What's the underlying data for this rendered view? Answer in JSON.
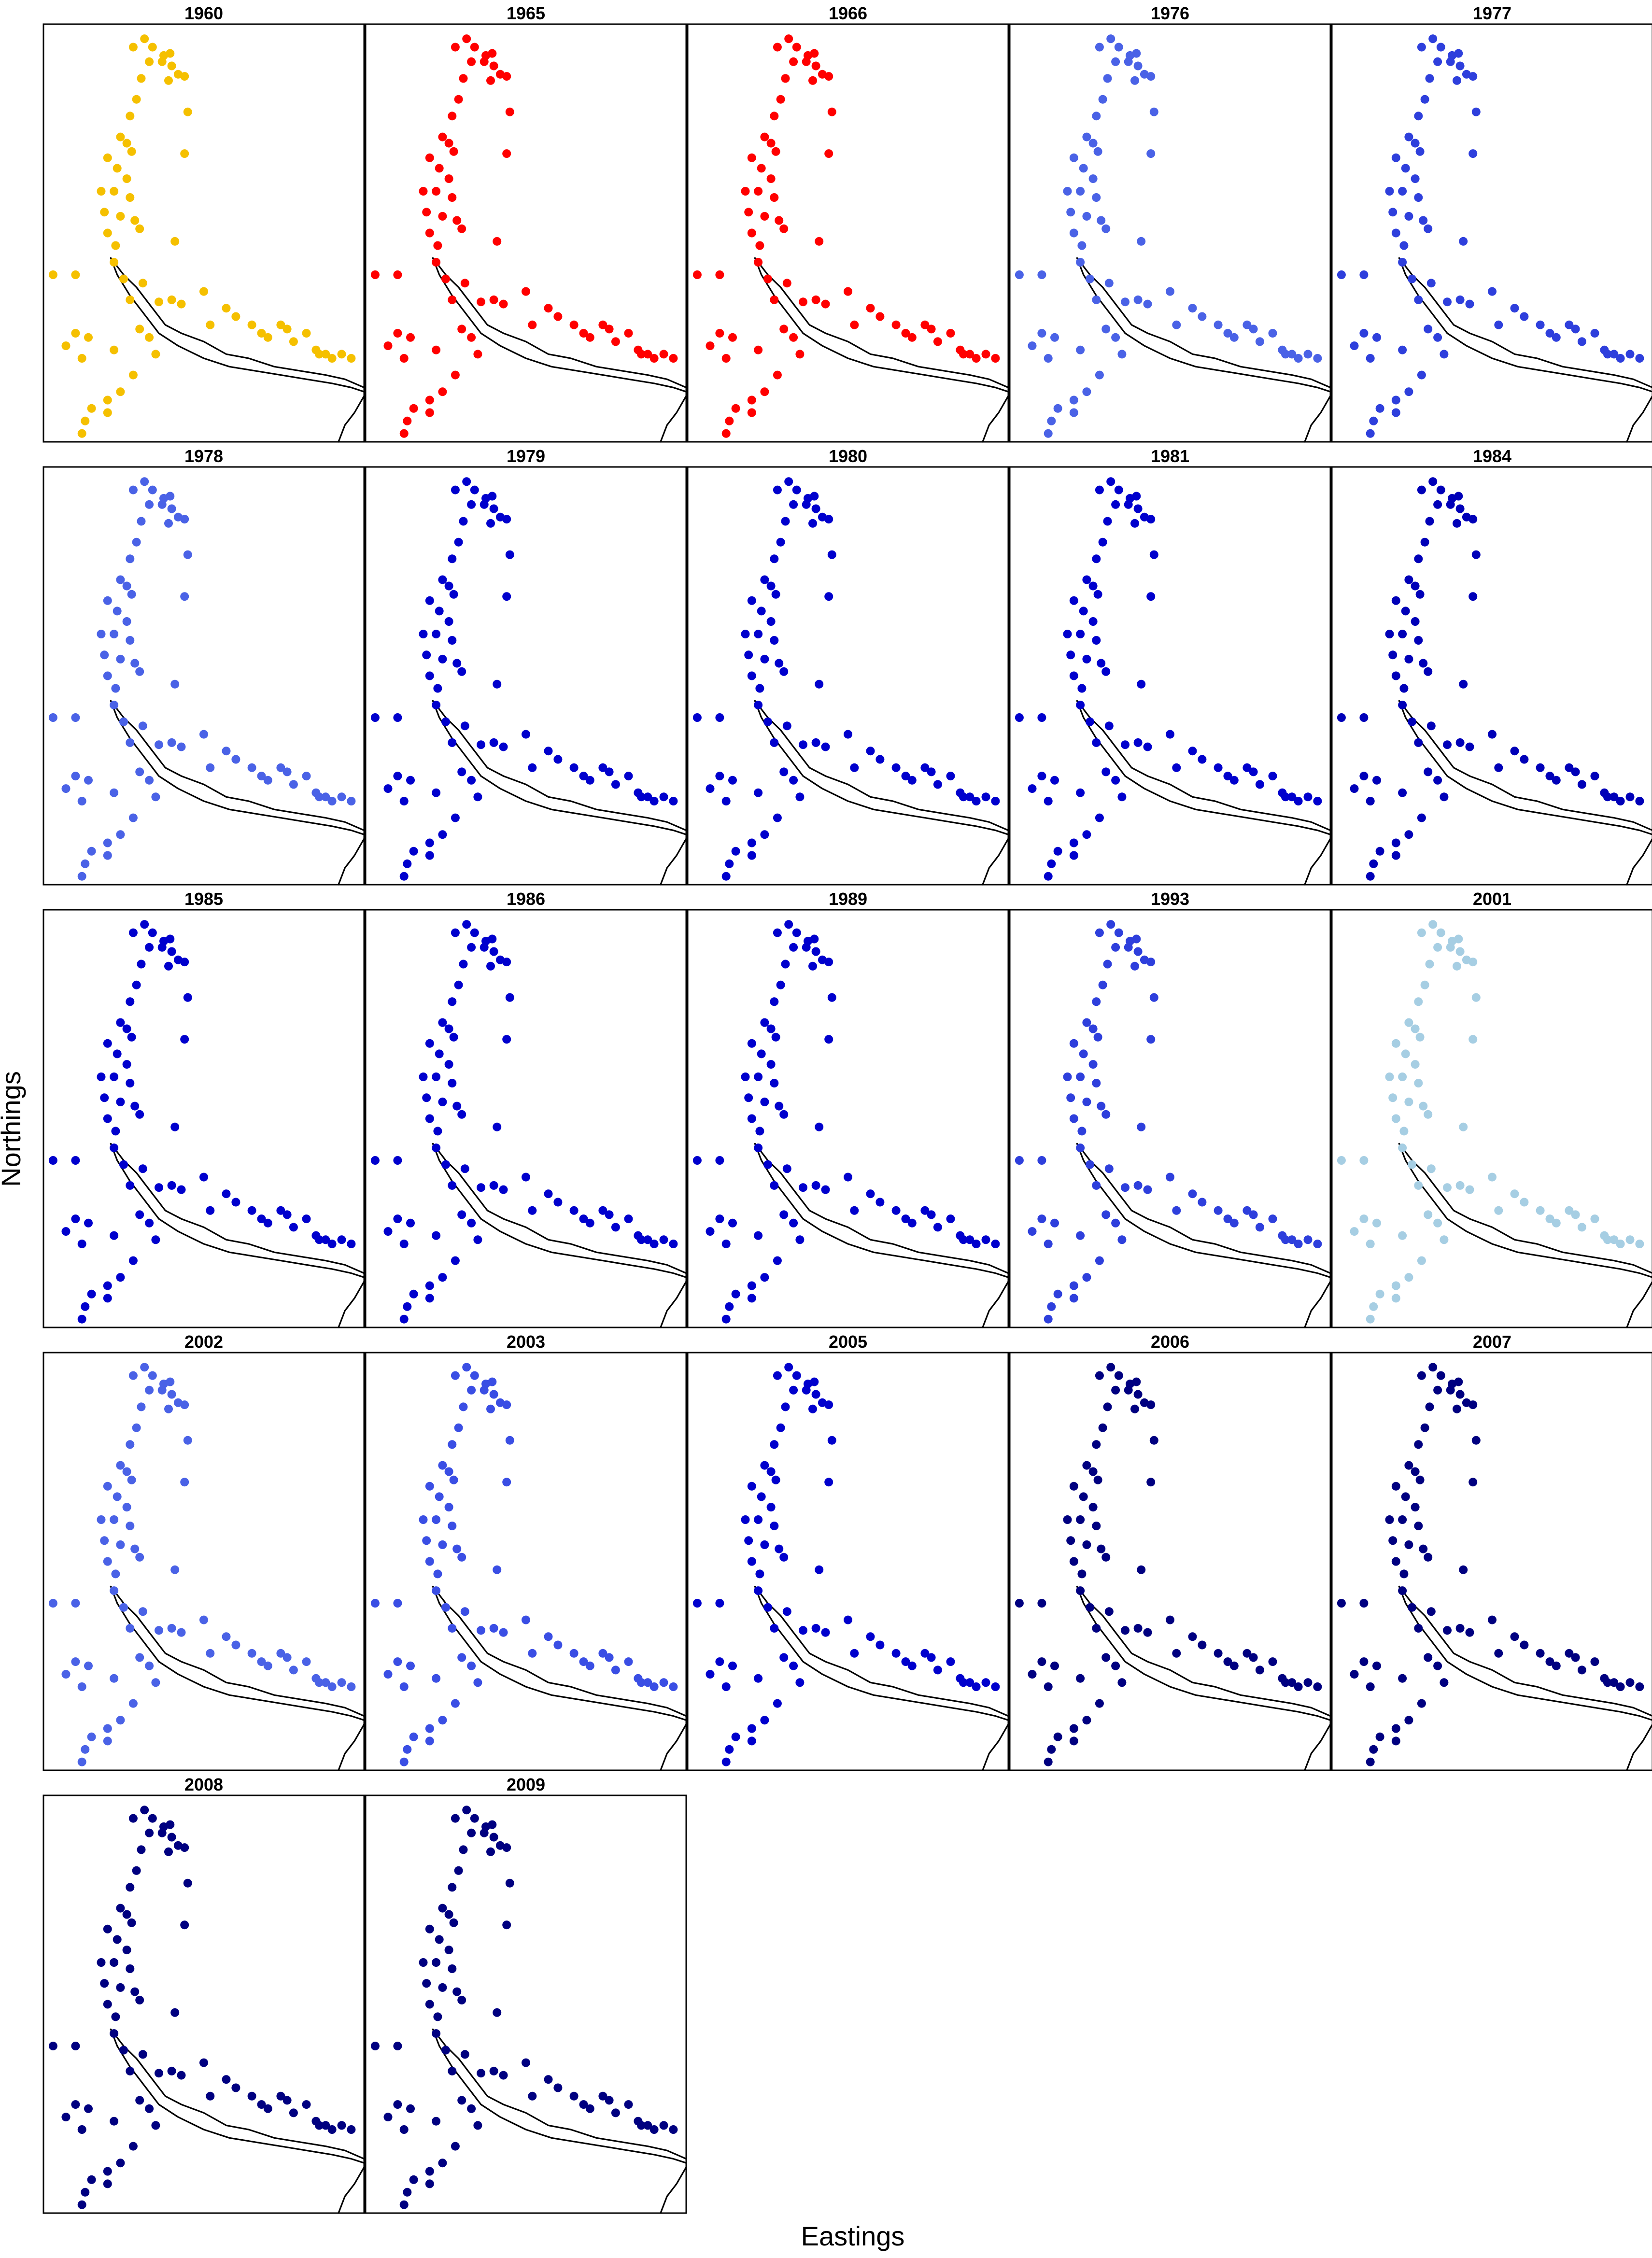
{
  "figure": {
    "xlabel": "Eastings",
    "ylabel": "Northings"
  },
  "chart_data": {
    "type": "scatter",
    "xlabel": "Eastings",
    "ylabel": "Northings",
    "panels": [
      {
        "year": "1960",
        "color": "#f5c000"
      },
      {
        "year": "1965",
        "color": "#ff0000"
      },
      {
        "year": "1966",
        "color": "#ff0000"
      },
      {
        "year": "1976",
        "color": "#4a62e6"
      },
      {
        "year": "1977",
        "color": "#2e3fdc"
      },
      {
        "year": "1978",
        "color": "#4a62e6"
      },
      {
        "year": "1979",
        "color": "#0000cd"
      },
      {
        "year": "1980",
        "color": "#0000cd"
      },
      {
        "year": "1981",
        "color": "#0000cd"
      },
      {
        "year": "1984",
        "color": "#0000b8"
      },
      {
        "year": "1985",
        "color": "#0000cd"
      },
      {
        "year": "1986",
        "color": "#0000cd"
      },
      {
        "year": "1989",
        "color": "#0000cd"
      },
      {
        "year": "1993",
        "color": "#2e3fdc"
      },
      {
        "year": "2001",
        "color": "#a6cee3"
      },
      {
        "year": "2002",
        "color": "#4a62e6"
      },
      {
        "year": "2003",
        "color": "#3a4ee4"
      },
      {
        "year": "2005",
        "color": "#0000cd"
      },
      {
        "year": "2006",
        "color": "#000080"
      },
      {
        "year": "2007",
        "color": "#000080"
      },
      {
        "year": "2008",
        "color": "#000080"
      },
      {
        "year": "2009",
        "color": "#000080"
      }
    ],
    "points": [
      [
        0.315,
        0.035
      ],
      [
        0.28,
        0.055
      ],
      [
        0.34,
        0.055
      ],
      [
        0.375,
        0.075
      ],
      [
        0.395,
        0.07
      ],
      [
        0.33,
        0.09
      ],
      [
        0.37,
        0.09
      ],
      [
        0.4,
        0.1
      ],
      [
        0.42,
        0.12
      ],
      [
        0.44,
        0.125
      ],
      [
        0.39,
        0.135
      ],
      [
        0.305,
        0.13
      ],
      [
        0.29,
        0.18
      ],
      [
        0.27,
        0.22
      ],
      [
        0.45,
        0.21
      ],
      [
        0.24,
        0.27
      ],
      [
        0.26,
        0.285
      ],
      [
        0.275,
        0.305
      ],
      [
        0.44,
        0.31
      ],
      [
        0.2,
        0.32
      ],
      [
        0.23,
        0.345
      ],
      [
        0.26,
        0.37
      ],
      [
        0.18,
        0.4
      ],
      [
        0.22,
        0.4
      ],
      [
        0.27,
        0.415
      ],
      [
        0.19,
        0.45
      ],
      [
        0.24,
        0.46
      ],
      [
        0.285,
        0.47
      ],
      [
        0.3,
        0.49
      ],
      [
        0.2,
        0.5
      ],
      [
        0.225,
        0.53
      ],
      [
        0.41,
        0.52
      ],
      [
        0.03,
        0.6
      ],
      [
        0.1,
        0.6
      ],
      [
        0.22,
        0.57
      ],
      [
        0.25,
        0.61
      ],
      [
        0.31,
        0.62
      ],
      [
        0.27,
        0.66
      ],
      [
        0.36,
        0.665
      ],
      [
        0.4,
        0.66
      ],
      [
        0.43,
        0.67
      ],
      [
        0.5,
        0.64
      ],
      [
        0.52,
        0.72
      ],
      [
        0.57,
        0.68
      ],
      [
        0.6,
        0.7
      ],
      [
        0.65,
        0.72
      ],
      [
        0.68,
        0.74
      ],
      [
        0.7,
        0.75
      ],
      [
        0.74,
        0.72
      ],
      [
        0.78,
        0.76
      ],
      [
        0.76,
        0.73
      ],
      [
        0.82,
        0.74
      ],
      [
        0.85,
        0.78
      ],
      [
        0.86,
        0.79
      ],
      [
        0.88,
        0.79
      ],
      [
        0.9,
        0.8
      ],
      [
        0.93,
        0.79
      ],
      [
        0.96,
        0.8
      ],
      [
        0.1,
        0.74
      ],
      [
        0.14,
        0.75
      ],
      [
        0.07,
        0.77
      ],
      [
        0.12,
        0.8
      ],
      [
        0.22,
        0.78
      ],
      [
        0.3,
        0.73
      ],
      [
        0.35,
        0.79
      ],
      [
        0.28,
        0.84
      ],
      [
        0.33,
        0.75
      ],
      [
        0.15,
        0.92
      ],
      [
        0.2,
        0.9
      ],
      [
        0.2,
        0.93
      ],
      [
        0.13,
        0.95
      ],
      [
        0.12,
        0.98
      ],
      [
        0.24,
        0.88
      ]
    ]
  }
}
